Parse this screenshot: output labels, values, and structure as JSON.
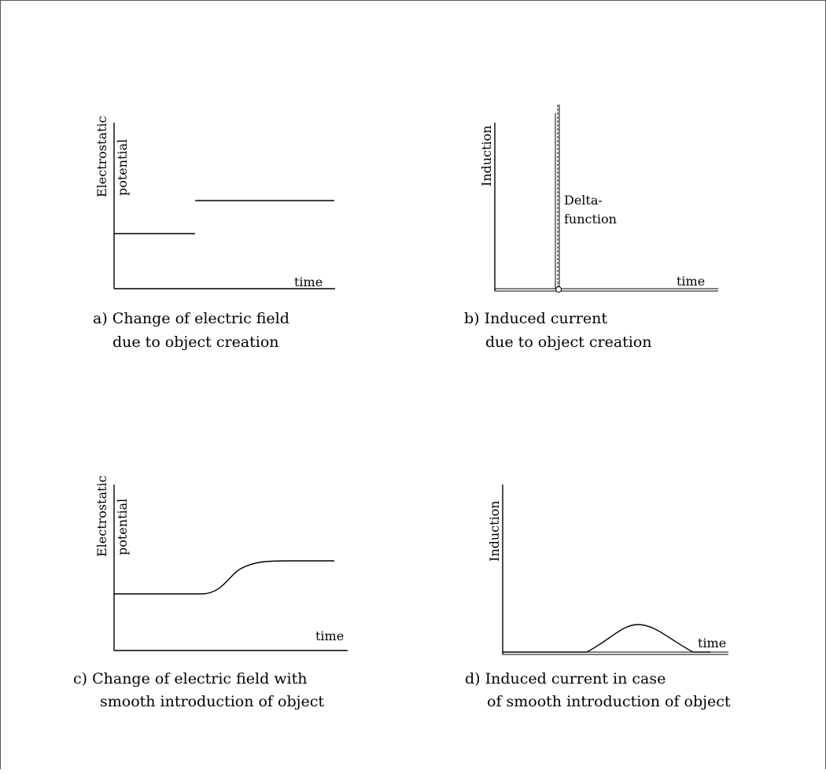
{
  "panels": [
    {
      "id": "a",
      "ylabel": [
        "Electrostatic",
        "potential"
      ],
      "xlabel": "time",
      "caption": [
        "a) Change of electric field",
        "due to object creation"
      ],
      "chart_data": {
        "type": "line",
        "shape": "step",
        "step_at": 0.36,
        "level_before": 0.3,
        "level_after": 0.6
      }
    },
    {
      "id": "b",
      "ylabel": [
        "Induction"
      ],
      "xlabel": "time",
      "annotation": [
        "Delta-",
        "function"
      ],
      "caption": [
        "b) Induced current",
        "due to object creation"
      ],
      "chart_data": {
        "type": "line",
        "shape": "delta-spike",
        "spike_at": 0.29
      }
    },
    {
      "id": "c",
      "ylabel": [
        "Electrostatic",
        "potential"
      ],
      "xlabel": "time",
      "caption": [
        "c) Change of electric field with",
        "smooth introduction of object"
      ],
      "chart_data": {
        "type": "line",
        "shape": "smooth-step",
        "transition": [
          0.38,
          0.62
        ],
        "level_before": 0.4,
        "level_after": 0.65
      }
    },
    {
      "id": "d",
      "ylabel": [
        "Induction"
      ],
      "xlabel": "time",
      "caption": [
        "d) Induced current in case",
        "of smooth introduction of object"
      ],
      "chart_data": {
        "type": "line",
        "shape": "bump",
        "range": [
          0.38,
          0.84
        ],
        "peak": 0.2
      }
    }
  ]
}
